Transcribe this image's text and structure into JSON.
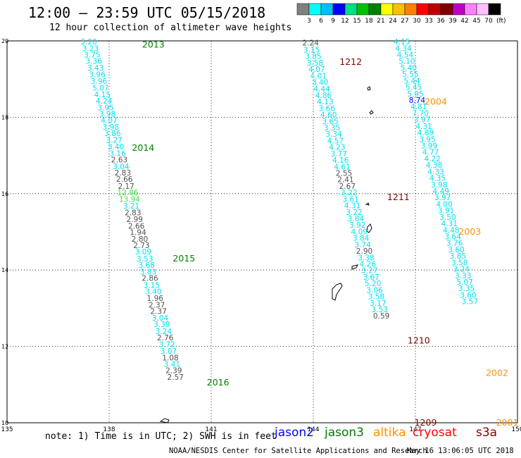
{
  "title": "12:00 – 23:59 UTC 05/15/2018",
  "subtitle": "12 hour collection of altimeter wave heights",
  "colorbar": {
    "unit": "(ft)",
    "labels": [
      "3",
      "6",
      "9",
      "12",
      "15",
      "18",
      "21",
      "24",
      "27",
      "30",
      "33",
      "36",
      "39",
      "42",
      "45",
      "70"
    ],
    "colors": [
      "#808080",
      "#00ffff",
      "#00bfff",
      "#0000ff",
      "#00e080",
      "#00c000",
      "#008000",
      "#ffff00",
      "#ffc000",
      "#ff8000",
      "#ff0000",
      "#c00000",
      "#800000",
      "#c000c0",
      "#ff80ff",
      "#ffc0ff",
      "#000000"
    ]
  },
  "axes": {
    "lon_ticks": [
      "135",
      "138",
      "141",
      "144",
      "147",
      "150"
    ],
    "lat_ticks": [
      "10",
      "12",
      "14",
      "16",
      "18",
      "20"
    ]
  },
  "colors": {
    "cyan": "#00ffff",
    "gray": "#5a5a5a",
    "lightgreen": "#40e040",
    "darkgreen": "#008000",
    "darkred": "#800000",
    "orange": "#ff9000",
    "blue": "#0000ff"
  },
  "track_labels": [
    {
      "text": "2013",
      "color": "darkgreen",
      "lon": 139.3,
      "lat": 19.9
    },
    {
      "text": "2014",
      "color": "darkgreen",
      "lon": 139.0,
      "lat": 17.2
    },
    {
      "text": "2015",
      "color": "darkgreen",
      "lon": 140.2,
      "lat": 14.3
    },
    {
      "text": "2016",
      "color": "darkgreen",
      "lon": 141.2,
      "lat": 11.05
    },
    {
      "text": "1212",
      "color": "darkred",
      "lon": 145.1,
      "lat": 19.45
    },
    {
      "text": "1211",
      "color": "darkred",
      "lon": 146.5,
      "lat": 15.9
    },
    {
      "text": "1210",
      "color": "darkred",
      "lon": 147.1,
      "lat": 12.15
    },
    {
      "text": "1209",
      "color": "darkred",
      "lon": 147.3,
      "lat": 10.0
    },
    {
      "text": "2004",
      "color": "orange",
      "lon": 147.6,
      "lat": 18.4
    },
    {
      "text": "2003",
      "color": "orange",
      "lon": 148.6,
      "lat": 15.0
    },
    {
      "text": "2002",
      "color": "orange",
      "lon": 149.4,
      "lat": 11.3
    },
    {
      "text": "2001",
      "color": "orange",
      "lon": 149.7,
      "lat": 10.0
    }
  ],
  "track_2013_2016": [
    {
      "v": "3.20",
      "c": "cyan",
      "lon": 137.4,
      "lat": 19.98
    },
    {
      "v": "3.23",
      "c": "cyan",
      "lon": 137.45,
      "lat": 19.81
    },
    {
      "v": "3.75",
      "c": "cyan",
      "lon": 137.5,
      "lat": 19.64
    },
    {
      "v": "3.36",
      "c": "cyan",
      "lon": 137.55,
      "lat": 19.47
    },
    {
      "v": "3.43",
      "c": "cyan",
      "lon": 137.6,
      "lat": 19.3
    },
    {
      "v": "3.96",
      "c": "cyan",
      "lon": 137.65,
      "lat": 19.12
    },
    {
      "v": "3.96",
      "c": "cyan",
      "lon": 137.7,
      "lat": 18.95
    },
    {
      "v": "5.07",
      "c": "cyan",
      "lon": 137.75,
      "lat": 18.77
    },
    {
      "v": "4.15",
      "c": "cyan",
      "lon": 137.8,
      "lat": 18.6
    },
    {
      "v": "4.24",
      "c": "cyan",
      "lon": 137.85,
      "lat": 18.43
    },
    {
      "v": "3.95",
      "c": "cyan",
      "lon": 137.9,
      "lat": 18.26
    },
    {
      "v": "3.98",
      "c": "cyan",
      "lon": 137.95,
      "lat": 18.09
    },
    {
      "v": "4.07",
      "c": "cyan",
      "lon": 138.0,
      "lat": 17.92
    },
    {
      "v": "3.98",
      "c": "cyan",
      "lon": 138.05,
      "lat": 17.75
    },
    {
      "v": "3.86",
      "c": "cyan",
      "lon": 138.1,
      "lat": 17.58
    },
    {
      "v": "3.27",
      "c": "cyan",
      "lon": 138.15,
      "lat": 17.41
    },
    {
      "v": "3.40",
      "c": "cyan",
      "lon": 138.2,
      "lat": 17.23
    },
    {
      "v": "3.16",
      "c": "cyan",
      "lon": 138.25,
      "lat": 17.06
    },
    {
      "v": "2.63",
      "c": "gray",
      "lon": 138.3,
      "lat": 16.89
    },
    {
      "v": "3.04",
      "c": "cyan",
      "lon": 138.35,
      "lat": 16.72
    },
    {
      "v": "2.83",
      "c": "gray",
      "lon": 138.4,
      "lat": 16.55
    },
    {
      "v": "2.66",
      "c": "gray",
      "lon": 138.45,
      "lat": 16.38
    },
    {
      "v": "2.17",
      "c": "gray",
      "lon": 138.5,
      "lat": 16.2
    },
    {
      "v": "12.86",
      "c": "lightgreen",
      "lon": 138.55,
      "lat": 16.03
    },
    {
      "v": "13.94",
      "c": "lightgreen",
      "lon": 138.6,
      "lat": 15.86
    },
    {
      "v": "3.21",
      "c": "cyan",
      "lon": 138.65,
      "lat": 15.68
    },
    {
      "v": "2.83",
      "c": "gray",
      "lon": 138.7,
      "lat": 15.51
    },
    {
      "v": "2.99",
      "c": "gray",
      "lon": 138.75,
      "lat": 15.33
    },
    {
      "v": "2.66",
      "c": "gray",
      "lon": 138.8,
      "lat": 15.16
    },
    {
      "v": "1.94",
      "c": "gray",
      "lon": 138.85,
      "lat": 14.99
    },
    {
      "v": "2.80",
      "c": "gray",
      "lon": 138.9,
      "lat": 14.82
    },
    {
      "v": "2.73",
      "c": "gray",
      "lon": 138.95,
      "lat": 14.65
    },
    {
      "v": "3.09",
      "c": "cyan",
      "lon": 139.0,
      "lat": 14.48
    },
    {
      "v": "3.53",
      "c": "cyan",
      "lon": 139.05,
      "lat": 14.3
    },
    {
      "v": "3.68",
      "c": "cyan",
      "lon": 139.1,
      "lat": 14.13
    },
    {
      "v": "3.83",
      "c": "cyan",
      "lon": 139.15,
      "lat": 13.96
    },
    {
      "v": "2.86",
      "c": "gray",
      "lon": 139.2,
      "lat": 13.79
    },
    {
      "v": "3.15",
      "c": "cyan",
      "lon": 139.25,
      "lat": 13.61
    },
    {
      "v": "3.40",
      "c": "cyan",
      "lon": 139.3,
      "lat": 13.44
    },
    {
      "v": "1.96",
      "c": "gray",
      "lon": 139.35,
      "lat": 13.27
    },
    {
      "v": "2.37",
      "c": "gray",
      "lon": 139.4,
      "lat": 13.09
    },
    {
      "v": "2.37",
      "c": "gray",
      "lon": 139.45,
      "lat": 12.92
    },
    {
      "v": "3.04",
      "c": "cyan",
      "lon": 139.5,
      "lat": 12.75
    },
    {
      "v": "3.39",
      "c": "cyan",
      "lon": 139.55,
      "lat": 12.58
    },
    {
      "v": "3.24",
      "c": "cyan",
      "lon": 139.6,
      "lat": 12.4
    },
    {
      "v": "2.76",
      "c": "gray",
      "lon": 139.65,
      "lat": 12.23
    },
    {
      "v": "3.72",
      "c": "cyan",
      "lon": 139.7,
      "lat": 12.06
    },
    {
      "v": "3.07",
      "c": "cyan",
      "lon": 139.75,
      "lat": 11.88
    },
    {
      "v": "1.08",
      "c": "gray",
      "lon": 139.8,
      "lat": 11.71
    },
    {
      "v": "3.41",
      "c": "cyan",
      "lon": 139.85,
      "lat": 11.54
    },
    {
      "v": "2.39",
      "c": "gray",
      "lon": 139.9,
      "lat": 11.37
    },
    {
      "v": "2.57",
      "c": "gray",
      "lon": 139.95,
      "lat": 11.2
    }
  ],
  "track_1209_1212": [
    {
      "v": "2.24",
      "c": "gray",
      "lon": 143.92,
      "lat": 19.95
    },
    {
      "v": "3.15",
      "c": "cyan",
      "lon": 143.95,
      "lat": 19.77
    },
    {
      "v": "3.85",
      "c": "cyan",
      "lon": 144.0,
      "lat": 19.6
    },
    {
      "v": "3.58",
      "c": "cyan",
      "lon": 144.05,
      "lat": 19.43
    },
    {
      "v": "4.07",
      "c": "cyan",
      "lon": 144.1,
      "lat": 19.26
    },
    {
      "v": "4.01",
      "c": "cyan",
      "lon": 144.15,
      "lat": 19.09
    },
    {
      "v": "3.40",
      "c": "cyan",
      "lon": 144.2,
      "lat": 18.92
    },
    {
      "v": "4.44",
      "c": "cyan",
      "lon": 144.25,
      "lat": 18.75
    },
    {
      "v": "4.86",
      "c": "cyan",
      "lon": 144.3,
      "lat": 18.58
    },
    {
      "v": "4.13",
      "c": "cyan",
      "lon": 144.35,
      "lat": 18.41
    },
    {
      "v": "3.66",
      "c": "cyan",
      "lon": 144.4,
      "lat": 18.24
    },
    {
      "v": "4.60",
      "c": "cyan",
      "lon": 144.45,
      "lat": 18.07
    },
    {
      "v": "3.65",
      "c": "cyan",
      "lon": 144.5,
      "lat": 17.9
    },
    {
      "v": "3.35",
      "c": "cyan",
      "lon": 144.55,
      "lat": 17.73
    },
    {
      "v": "3.34",
      "c": "cyan",
      "lon": 144.6,
      "lat": 17.56
    },
    {
      "v": "4.57",
      "c": "cyan",
      "lon": 144.65,
      "lat": 17.39
    },
    {
      "v": "4.23",
      "c": "cyan",
      "lon": 144.7,
      "lat": 17.22
    },
    {
      "v": "3.77",
      "c": "cyan",
      "lon": 144.75,
      "lat": 17.05
    },
    {
      "v": "4.16",
      "c": "cyan",
      "lon": 144.8,
      "lat": 16.88
    },
    {
      "v": "4.61",
      "c": "cyan",
      "lon": 144.85,
      "lat": 16.71
    },
    {
      "v": "2.55",
      "c": "gray",
      "lon": 144.9,
      "lat": 16.54
    },
    {
      "v": "2.41",
      "c": "gray",
      "lon": 144.95,
      "lat": 16.37
    },
    {
      "v": "2.67",
      "c": "gray",
      "lon": 145.0,
      "lat": 16.2
    },
    {
      "v": "3.22",
      "c": "cyan",
      "lon": 145.05,
      "lat": 16.03
    },
    {
      "v": "3.61",
      "c": "cyan",
      "lon": 145.1,
      "lat": 15.86
    },
    {
      "v": "4.31",
      "c": "cyan",
      "lon": 145.15,
      "lat": 15.69
    },
    {
      "v": "3.22",
      "c": "cyan",
      "lon": 145.2,
      "lat": 15.52
    },
    {
      "v": "3.84",
      "c": "cyan",
      "lon": 145.25,
      "lat": 15.35
    },
    {
      "v": "3.92",
      "c": "cyan",
      "lon": 145.3,
      "lat": 15.18
    },
    {
      "v": "4.09",
      "c": "cyan",
      "lon": 145.35,
      "lat": 15.01
    },
    {
      "v": "3.84",
      "c": "cyan",
      "lon": 145.4,
      "lat": 14.84
    },
    {
      "v": "3.74",
      "c": "cyan",
      "lon": 145.45,
      "lat": 14.67
    },
    {
      "v": "2.90",
      "c": "gray",
      "lon": 145.5,
      "lat": 14.5
    },
    {
      "v": "3.38",
      "c": "cyan",
      "lon": 145.55,
      "lat": 14.33
    },
    {
      "v": "4.26",
      "c": "cyan",
      "lon": 145.6,
      "lat": 14.16
    },
    {
      "v": "3.27",
      "c": "cyan",
      "lon": 145.65,
      "lat": 13.99
    },
    {
      "v": "3.67",
      "c": "cyan",
      "lon": 145.7,
      "lat": 13.82
    },
    {
      "v": "5.20",
      "c": "cyan",
      "lon": 145.75,
      "lat": 13.65
    },
    {
      "v": "3.06",
      "c": "cyan",
      "lon": 145.8,
      "lat": 13.48
    },
    {
      "v": "3.58",
      "c": "cyan",
      "lon": 145.85,
      "lat": 13.31
    },
    {
      "v": "3.17",
      "c": "cyan",
      "lon": 145.9,
      "lat": 13.14
    },
    {
      "v": "3.53",
      "c": "cyan",
      "lon": 145.95,
      "lat": 12.97
    },
    {
      "v": "0.59",
      "c": "gray",
      "lon": 146.0,
      "lat": 12.8
    }
  ],
  "track_2001_2004": [
    {
      "v": "4.15",
      "c": "cyan",
      "lon": 146.6,
      "lat": 19.98
    },
    {
      "v": "4.34",
      "c": "cyan",
      "lon": 146.65,
      "lat": 19.81
    },
    {
      "v": "4.54",
      "c": "cyan",
      "lon": 146.7,
      "lat": 19.64
    },
    {
      "v": "5.10",
      "c": "cyan",
      "lon": 146.75,
      "lat": 19.47
    },
    {
      "v": "5.40",
      "c": "cyan",
      "lon": 146.8,
      "lat": 19.3
    },
    {
      "v": "5.55",
      "c": "cyan",
      "lon": 146.85,
      "lat": 19.13
    },
    {
      "v": "5.44",
      "c": "cyan",
      "lon": 146.9,
      "lat": 18.96
    },
    {
      "v": "5.45",
      "c": "cyan",
      "lon": 146.95,
      "lat": 18.79
    },
    {
      "v": "5.95",
      "c": "cyan",
      "lon": 147.0,
      "lat": 18.62
    },
    {
      "v": "8.74",
      "c": "blue",
      "lon": 147.05,
      "lat": 18.45
    },
    {
      "v": "4.81",
      "c": "cyan",
      "lon": 147.1,
      "lat": 18.28
    },
    {
      "v": "7.70",
      "c": "cyan",
      "lon": 147.15,
      "lat": 18.11
    },
    {
      "v": "3.97",
      "c": "cyan",
      "lon": 147.2,
      "lat": 17.94
    },
    {
      "v": "4.31",
      "c": "cyan",
      "lon": 147.25,
      "lat": 17.77
    },
    {
      "v": "4.89",
      "c": "cyan",
      "lon": 147.3,
      "lat": 17.6
    },
    {
      "v": "3.95",
      "c": "cyan",
      "lon": 147.35,
      "lat": 17.43
    },
    {
      "v": "3.99",
      "c": "cyan",
      "lon": 147.4,
      "lat": 17.26
    },
    {
      "v": "4.77",
      "c": "cyan",
      "lon": 147.45,
      "lat": 17.09
    },
    {
      "v": "4.22",
      "c": "cyan",
      "lon": 147.5,
      "lat": 16.92
    },
    {
      "v": "4.38",
      "c": "cyan",
      "lon": 147.55,
      "lat": 16.75
    },
    {
      "v": "4.33",
      "c": "cyan",
      "lon": 147.6,
      "lat": 16.58
    },
    {
      "v": "4.35",
      "c": "cyan",
      "lon": 147.65,
      "lat": 16.41
    },
    {
      "v": "3.98",
      "c": "cyan",
      "lon": 147.7,
      "lat": 16.24
    },
    {
      "v": "4.49",
      "c": "cyan",
      "lon": 147.75,
      "lat": 16.07
    },
    {
      "v": "3.97",
      "c": "cyan",
      "lon": 147.8,
      "lat": 15.9
    },
    {
      "v": "4.00",
      "c": "cyan",
      "lon": 147.85,
      "lat": 15.73
    },
    {
      "v": "3.91",
      "c": "cyan",
      "lon": 147.9,
      "lat": 15.56
    },
    {
      "v": "3.50",
      "c": "cyan",
      "lon": 147.95,
      "lat": 15.39
    },
    {
      "v": "4.31",
      "c": "cyan",
      "lon": 148.0,
      "lat": 15.22
    },
    {
      "v": "4.48",
      "c": "cyan",
      "lon": 148.05,
      "lat": 15.05
    },
    {
      "v": "3.64",
      "c": "cyan",
      "lon": 148.1,
      "lat": 14.88
    },
    {
      "v": "3.76",
      "c": "cyan",
      "lon": 148.15,
      "lat": 14.71
    },
    {
      "v": "3.60",
      "c": "cyan",
      "lon": 148.2,
      "lat": 14.54
    },
    {
      "v": "3.85",
      "c": "cyan",
      "lon": 148.25,
      "lat": 14.37
    },
    {
      "v": "3.58",
      "c": "cyan",
      "lon": 148.3,
      "lat": 14.2
    },
    {
      "v": "3.24",
      "c": "cyan",
      "lon": 148.35,
      "lat": 14.03
    },
    {
      "v": "3.33",
      "c": "cyan",
      "lon": 148.4,
      "lat": 13.86
    },
    {
      "v": "5.07",
      "c": "cyan",
      "lon": 148.45,
      "lat": 13.69
    },
    {
      "v": "3.35",
      "c": "cyan",
      "lon": 148.5,
      "lat": 13.52
    },
    {
      "v": "3.60",
      "c": "cyan",
      "lon": 148.55,
      "lat": 13.35
    },
    {
      "v": "3.57",
      "c": "cyan",
      "lon": 148.6,
      "lat": 13.18
    }
  ],
  "note": "note: 1) Time is in UTC; 2) SWH is in feet",
  "satellites": [
    {
      "name": "jason2",
      "color": "blue"
    },
    {
      "name": "jason3",
      "color": "darkgreen"
    },
    {
      "name": "altika",
      "color": "orange"
    },
    {
      "name": "cryosat",
      "color": "red"
    },
    {
      "name": "s3a",
      "color": "darkred"
    }
  ],
  "credit": "NOAA/NESDIS Center for Satellite Applications and Research",
  "timestamp": "May 16 13:06:05 UTC 2018"
}
